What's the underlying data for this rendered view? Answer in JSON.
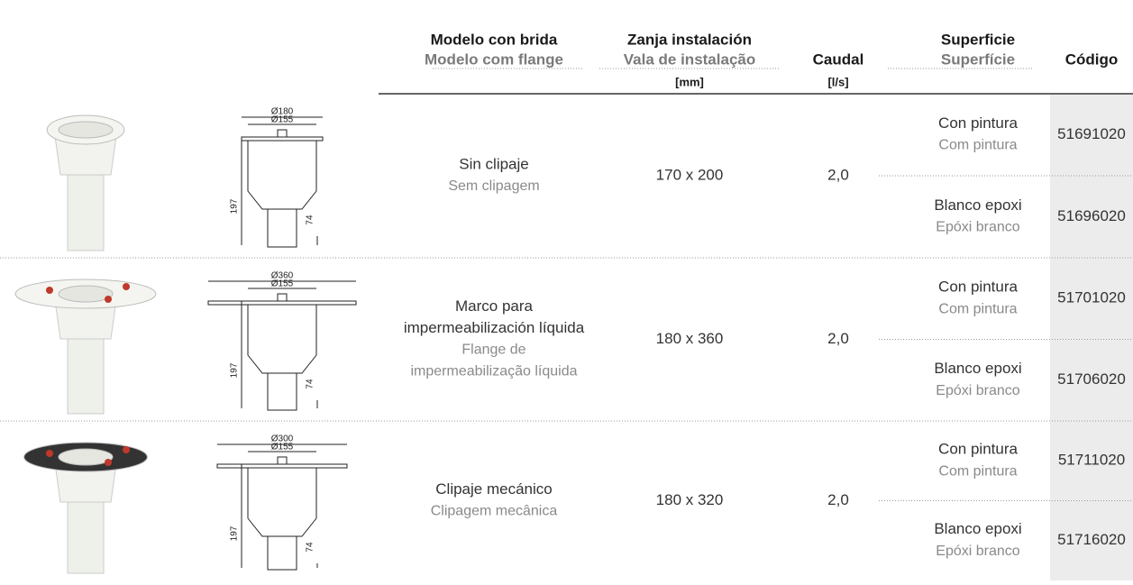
{
  "table": {
    "header": {
      "model": {
        "es": "Modelo con brida",
        "pt": "Modelo com flange"
      },
      "trench": {
        "es": "Zanja instalación",
        "pt": "Vala de instalação",
        "unit": "[mm]"
      },
      "flow": {
        "label": "Caudal",
        "unit": "[l/s]"
      },
      "surface": {
        "es": "Superficie",
        "pt": "Superfície"
      },
      "code": "Código"
    },
    "rows": [
      {
        "drawing": {
          "outer": "Ø180",
          "inner": "Ø155",
          "height": "197",
          "spout": "74"
        },
        "model": {
          "es": [
            "Sin clipaje"
          ],
          "pt": [
            "Sem clipagem"
          ]
        },
        "trench": "170 x 200",
        "flow": "2,0",
        "variants": [
          {
            "es": "Con pintura",
            "pt": "Com pintura",
            "code": "51691020"
          },
          {
            "es": "Blanco epoxi",
            "pt": "Epóxi branco",
            "code": "51696020"
          }
        ]
      },
      {
        "drawing": {
          "outer": "Ø360",
          "inner": "Ø155",
          "height": "197",
          "spout": "74"
        },
        "model": {
          "es": [
            "Marco para",
            "impermeabilización líquida"
          ],
          "pt": [
            "Flange de",
            "impermeabilização líquida"
          ]
        },
        "trench": "180 x 360",
        "flow": "2,0",
        "variants": [
          {
            "es": "Con pintura",
            "pt": "Com pintura",
            "code": "51701020"
          },
          {
            "es": "Blanco epoxi",
            "pt": "Epóxi branco",
            "code": "51706020"
          }
        ]
      },
      {
        "drawing": {
          "outer": "Ø300",
          "inner": "Ø155",
          "height": "197",
          "spout": "74"
        },
        "model": {
          "es": [
            "Clipaje mecánico"
          ],
          "pt": [
            "Clipagem mecânica"
          ]
        },
        "trench": "180 x 320",
        "flow": "2,0",
        "variants": [
          {
            "es": "Con pintura",
            "pt": "Com pintura",
            "code": "51711020"
          },
          {
            "es": "Blanco epoxi",
            "pt": "Epóxi branco",
            "code": "51716020"
          }
        ]
      }
    ]
  }
}
